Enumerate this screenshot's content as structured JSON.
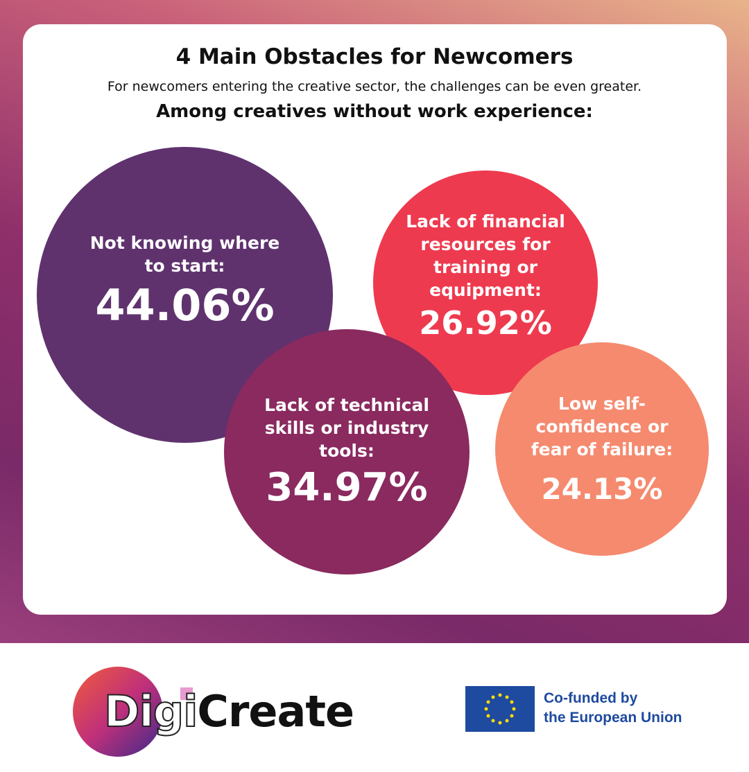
{
  "title": "4 Main Obstacles for Newcomers",
  "subtitle": "For newcomers entering the creative sector, the challenges can be even greater.",
  "group_heading": "Among creatives without work experience:",
  "obstacles": [
    {
      "label": "Not knowing where to start:",
      "value": "44.06%",
      "color": "#5f326e"
    },
    {
      "label": "Lack of financial resources for training or equipment:",
      "value": "26.92%",
      "color": "#ee3a4f"
    },
    {
      "label": "Lack of technical skills or industry tools:",
      "value": "34.97%",
      "color": "#8a2a5f"
    },
    {
      "label": "Low self-confidence or fear of failure:",
      "value": "24.13%",
      "color": "#f58a6f"
    }
  ],
  "logo": {
    "part1": "Digi",
    "part2": "Create"
  },
  "eu": {
    "line1": "Co-funded by",
    "line2": "the European Union"
  }
}
